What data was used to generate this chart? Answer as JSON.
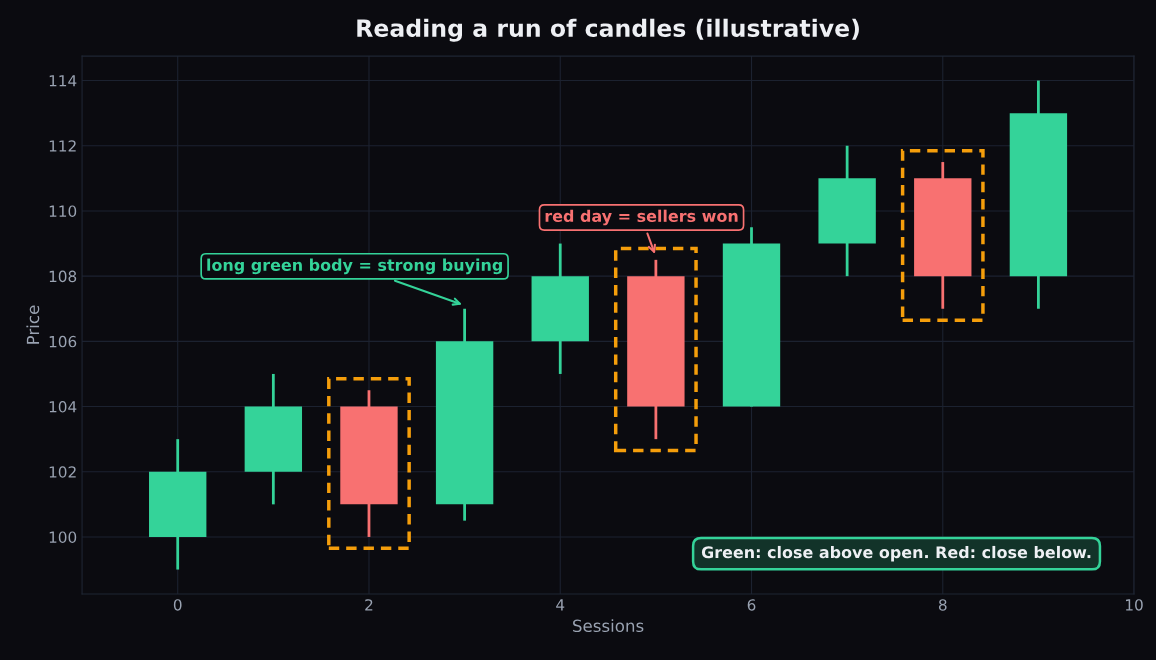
{
  "chart_data": {
    "type": "candlestick",
    "title": "Reading a run of candles (illustrative)",
    "xlabel": "Sessions",
    "ylabel": "Price",
    "x": [
      0,
      1,
      2,
      3,
      4,
      5,
      6,
      7,
      8,
      9
    ],
    "ohlc": [
      [
        100,
        103,
        99,
        102
      ],
      [
        102,
        105,
        101,
        104
      ],
      [
        104,
        104.5,
        100,
        101
      ],
      [
        101,
        107,
        100.5,
        106
      ],
      [
        106,
        109,
        105,
        108
      ],
      [
        108,
        108.5,
        103,
        104
      ],
      [
        104,
        109.5,
        104,
        109
      ],
      [
        109,
        112,
        108,
        111
      ],
      [
        111,
        111.5,
        107,
        108
      ],
      [
        108,
        114,
        107,
        113
      ]
    ],
    "colors": [
      "#34d399",
      "#34d399",
      "#f87171",
      "#34d399",
      "#34d399",
      "#f87171",
      "#34d399",
      "#34d399",
      "#f87171",
      "#34d399"
    ],
    "xlim": [
      -1,
      10
    ],
    "xticks": [
      0,
      2,
      4,
      6,
      8,
      10
    ],
    "ylim": [
      98.25,
      114.75
    ],
    "yticks": [
      100,
      102,
      104,
      106,
      108,
      110,
      112,
      114
    ],
    "grid": true,
    "annotations": [
      {
        "text": "long green body = strong buying",
        "x": 3,
        "y": 107.1
      },
      {
        "text": "red day = sellers won",
        "x": 5,
        "y": 108.6
      },
      "Green: close above open. Red: close below."
    ]
  }
}
